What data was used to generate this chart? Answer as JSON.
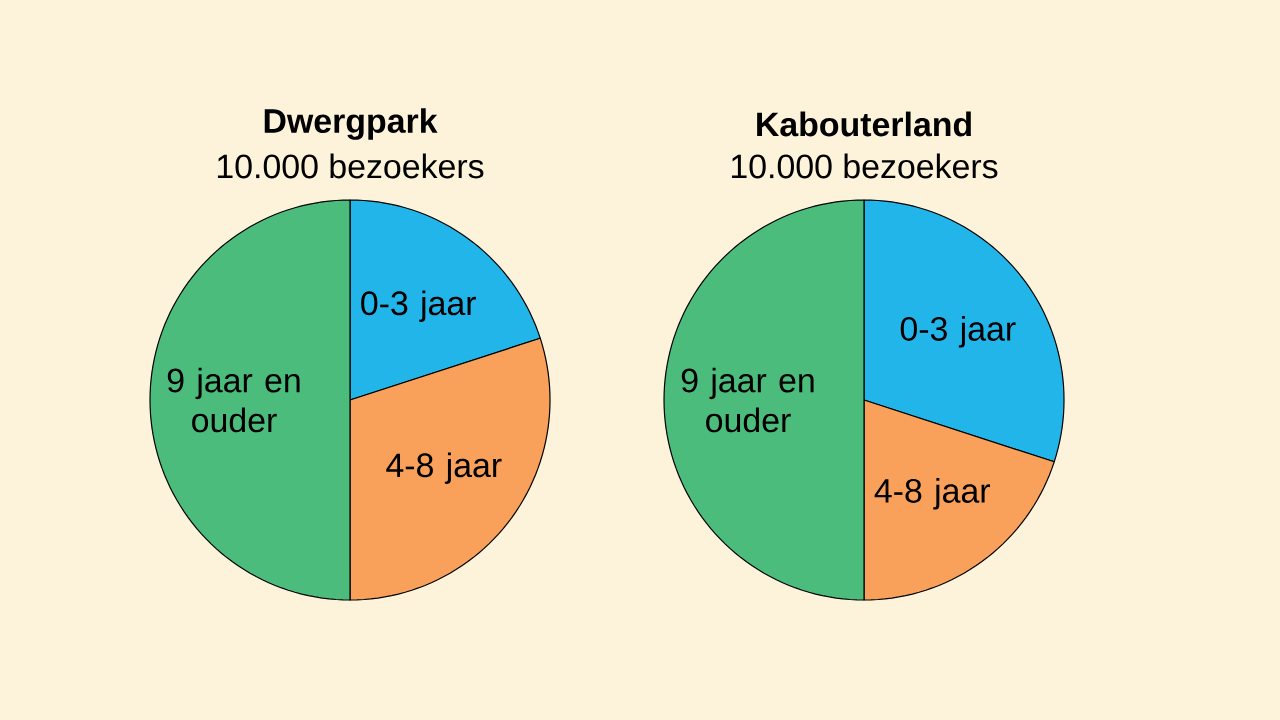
{
  "chart_data": [
    {
      "type": "pie",
      "title": "Dwergpark",
      "subtitle": "10.000 bezoekers",
      "categories": [
        "0-3 jaar",
        "4-8 jaar",
        "9 jaar en ouder"
      ],
      "values": [
        20,
        30,
        50
      ],
      "colors": [
        "#22b5ea",
        "#f9a05a",
        "#4cbc7c"
      ]
    },
    {
      "type": "pie",
      "title": "Kabouterland",
      "subtitle": "10.000 bezoekers",
      "categories": [
        "0-3 jaar",
        "4-8 jaar",
        "9 jaar en ouder"
      ],
      "values": [
        30,
        20,
        50
      ],
      "colors": [
        "#22b5ea",
        "#f9a05a",
        "#4cbc7c"
      ]
    }
  ]
}
